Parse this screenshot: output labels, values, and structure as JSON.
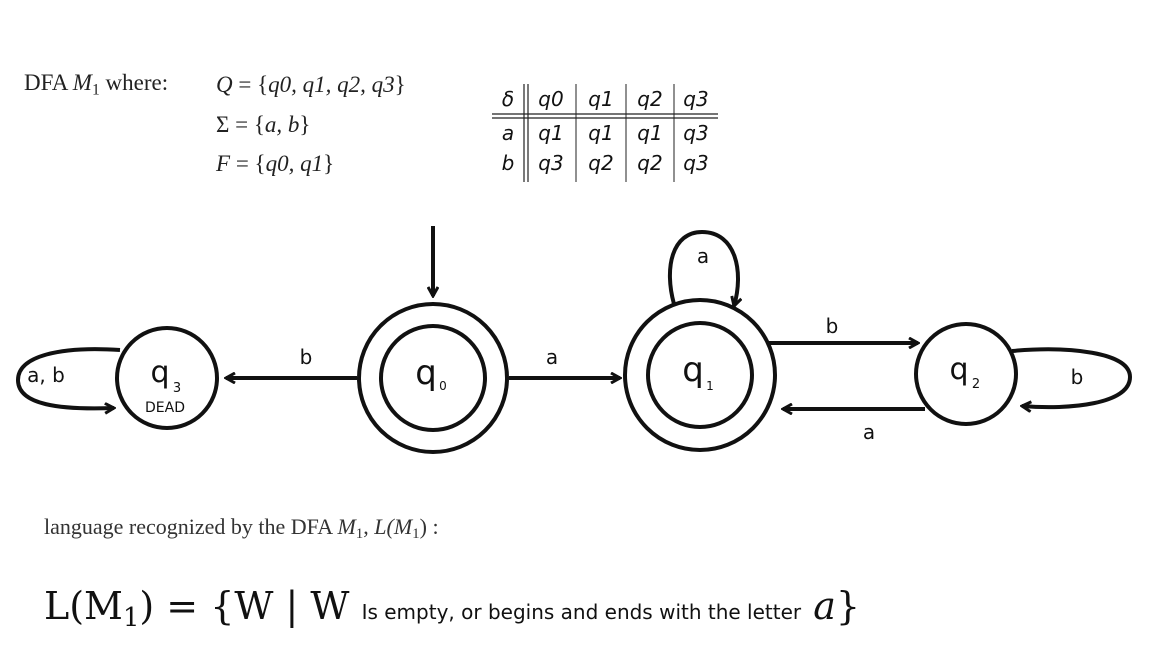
{
  "definition": {
    "intro": "DFA",
    "machine": "M",
    "machine_sub": "1",
    "where": "where:",
    "Q": {
      "lhs": "Q",
      "eq": "=",
      "open": "{",
      "items": [
        "q0",
        "q1",
        "q2",
        "q3"
      ],
      "close": "}"
    },
    "Sigma": {
      "lhs": "Σ",
      "eq": "=",
      "open": "{",
      "items": [
        "a",
        "b"
      ],
      "close": "}"
    },
    "F": {
      "lhs": "F",
      "eq": "=",
      "open": "{",
      "items": [
        "q0",
        "q1"
      ],
      "close": "}"
    }
  },
  "transition_table": {
    "corner": "δ",
    "columns": [
      "q0",
      "q1",
      "q2",
      "q3"
    ],
    "rows": [
      {
        "symbol": "a",
        "targets": [
          "q1",
          "q1",
          "q1",
          "q3"
        ]
      },
      {
        "symbol": "b",
        "targets": [
          "q3",
          "q2",
          "q2",
          "q3"
        ]
      }
    ]
  },
  "diagram": {
    "states": [
      {
        "id": "q3",
        "label": "q",
        "sub": "3",
        "note": "DEAD",
        "accepting": false,
        "start": false
      },
      {
        "id": "q0",
        "label": "q",
        "sub": "0",
        "note": "",
        "accepting": true,
        "start": true
      },
      {
        "id": "q1",
        "label": "q",
        "sub": "1",
        "note": "",
        "accepting": true,
        "start": false
      },
      {
        "id": "q2",
        "label": "q",
        "sub": "2",
        "note": "",
        "accepting": false,
        "start": false
      }
    ],
    "transitions": [
      {
        "from": "q3",
        "to": "q3",
        "label": "a, b"
      },
      {
        "from": "q0",
        "to": "q3",
        "label": "b"
      },
      {
        "from": "q0",
        "to": "q1",
        "label": "a"
      },
      {
        "from": "q1",
        "to": "q1",
        "label": "a"
      },
      {
        "from": "q1",
        "to": "q2",
        "label": "b"
      },
      {
        "from": "q2",
        "to": "q1",
        "label": "a"
      },
      {
        "from": "q2",
        "to": "q2",
        "label": "b"
      }
    ]
  },
  "language": {
    "caption_prefix": "language recognized by the DFA",
    "caption_machine": "M",
    "caption_sub": "1",
    "caption_mid": ",",
    "caption_L": "L(M",
    "caption_end": ") :",
    "formula_lhs": "L(M",
    "formula_sub": "1",
    "formula_eq": ") = {W | W",
    "formula_text": "Is empty, or begins and ends with the letter",
    "formula_letter": "a",
    "formula_close": "}"
  }
}
